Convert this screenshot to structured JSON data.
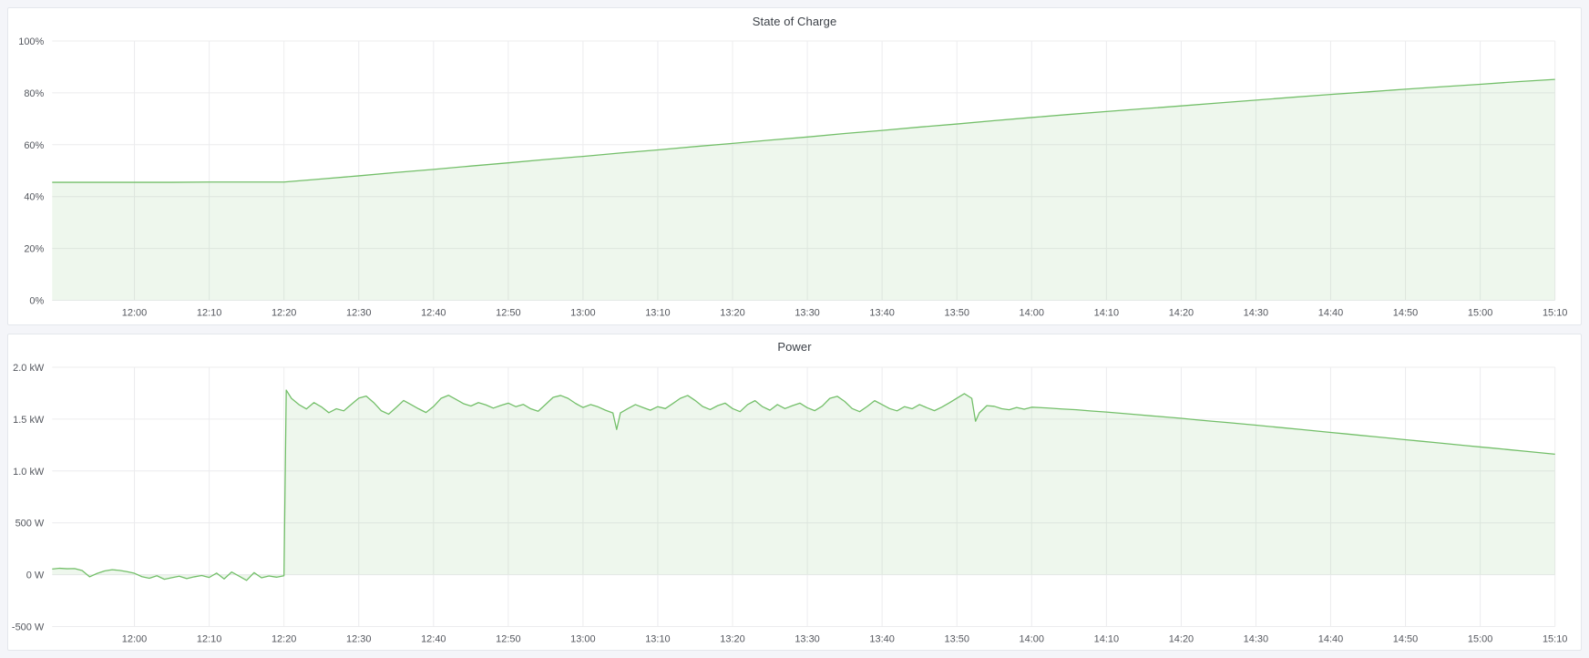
{
  "page": {
    "background_color": "#f4f5f9",
    "panel_background": "#ffffff",
    "panel_border_color": "#e4e7ec",
    "grid_color": "#ececee",
    "title_color": "#3c4148",
    "tick_label_color": "#54575e",
    "accent_green": "#73bf69"
  },
  "panels": [
    {
      "title": "State of Charge"
    },
    {
      "title": "Power"
    }
  ],
  "chart_data": [
    {
      "type": "area",
      "title": "State of Charge",
      "unit": "%",
      "legend": "none",
      "grid": true,
      "grid_color": "#ececee",
      "x_domain": [
        709,
        910
      ],
      "x_ticks": [
        {
          "t": 720,
          "label": "12:00"
        },
        {
          "t": 730,
          "label": "12:10"
        },
        {
          "t": 740,
          "label": "12:20"
        },
        {
          "t": 750,
          "label": "12:30"
        },
        {
          "t": 760,
          "label": "12:40"
        },
        {
          "t": 770,
          "label": "12:50"
        },
        {
          "t": 780,
          "label": "13:00"
        },
        {
          "t": 790,
          "label": "13:10"
        },
        {
          "t": 800,
          "label": "13:20"
        },
        {
          "t": 810,
          "label": "13:30"
        },
        {
          "t": 820,
          "label": "13:40"
        },
        {
          "t": 830,
          "label": "13:50"
        },
        {
          "t": 840,
          "label": "14:00"
        },
        {
          "t": 850,
          "label": "14:10"
        },
        {
          "t": 860,
          "label": "14:20"
        },
        {
          "t": 870,
          "label": "14:30"
        },
        {
          "t": 880,
          "label": "14:40"
        },
        {
          "t": 890,
          "label": "14:50"
        },
        {
          "t": 900,
          "label": "15:00"
        },
        {
          "t": 910,
          "label": "15:10"
        }
      ],
      "ylim": [
        0,
        100
      ],
      "y_ticks": [
        {
          "v": 0,
          "label": "0%"
        },
        {
          "v": 20,
          "label": "20%"
        },
        {
          "v": 40,
          "label": "40%"
        },
        {
          "v": 60,
          "label": "60%"
        },
        {
          "v": 80,
          "label": "80%"
        },
        {
          "v": 100,
          "label": "100%"
        }
      ],
      "series": [
        {
          "name": "State of Charge",
          "color": "#73bf69",
          "fill": "rgba(115,191,105,0.12)",
          "fill_to": 0,
          "points": [
            [
              709,
              45.5
            ],
            [
              715,
              45.5
            ],
            [
              720,
              45.5
            ],
            [
              725,
              45.5
            ],
            [
              730,
              45.6
            ],
            [
              735,
              45.6
            ],
            [
              740,
              45.6
            ],
            [
              745,
              46.8
            ],
            [
              750,
              48
            ],
            [
              755,
              49.3
            ],
            [
              760,
              50.5
            ],
            [
              765,
              51.8
            ],
            [
              770,
              53
            ],
            [
              775,
              54.3
            ],
            [
              780,
              55.5
            ],
            [
              785,
              56.8
            ],
            [
              790,
              58
            ],
            [
              795,
              59.3
            ],
            [
              800,
              60.5
            ],
            [
              805,
              61.8
            ],
            [
              810,
              63
            ],
            [
              815,
              64.3
            ],
            [
              820,
              65.5
            ],
            [
              825,
              66.8
            ],
            [
              830,
              68
            ],
            [
              835,
              69.3
            ],
            [
              840,
              70.5
            ],
            [
              845,
              71.7
            ],
            [
              850,
              72.8
            ],
            [
              855,
              73.9
            ],
            [
              860,
              75
            ],
            [
              865,
              76.1
            ],
            [
              870,
              77.2
            ],
            [
              875,
              78.3
            ],
            [
              880,
              79.4
            ],
            [
              885,
              80.4
            ],
            [
              890,
              81.4
            ],
            [
              895,
              82.4
            ],
            [
              900,
              83.3
            ],
            [
              905,
              84.3
            ],
            [
              910,
              85.2
            ]
          ]
        }
      ]
    },
    {
      "type": "area",
      "title": "Power",
      "unit": "W",
      "legend": "none",
      "grid": true,
      "grid_color": "#ececee",
      "x_domain": [
        709,
        910
      ],
      "x_ticks": [
        {
          "t": 720,
          "label": "12:00"
        },
        {
          "t": 730,
          "label": "12:10"
        },
        {
          "t": 740,
          "label": "12:20"
        },
        {
          "t": 750,
          "label": "12:30"
        },
        {
          "t": 760,
          "label": "12:40"
        },
        {
          "t": 770,
          "label": "12:50"
        },
        {
          "t": 780,
          "label": "13:00"
        },
        {
          "t": 790,
          "label": "13:10"
        },
        {
          "t": 800,
          "label": "13:20"
        },
        {
          "t": 810,
          "label": "13:30"
        },
        {
          "t": 820,
          "label": "13:40"
        },
        {
          "t": 830,
          "label": "13:50"
        },
        {
          "t": 840,
          "label": "14:00"
        },
        {
          "t": 850,
          "label": "14:10"
        },
        {
          "t": 860,
          "label": "14:20"
        },
        {
          "t": 870,
          "label": "14:30"
        },
        {
          "t": 880,
          "label": "14:40"
        },
        {
          "t": 890,
          "label": "14:50"
        },
        {
          "t": 900,
          "label": "15:00"
        },
        {
          "t": 910,
          "label": "15:10"
        }
      ],
      "ylim": [
        -500,
        2000
      ],
      "y_ticks": [
        {
          "v": -500,
          "label": "-500 W"
        },
        {
          "v": 0,
          "label": "0 W"
        },
        {
          "v": 500,
          "label": "500 W"
        },
        {
          "v": 1000,
          "label": "1.0 kW"
        },
        {
          "v": 1500,
          "label": "1.5 kW"
        },
        {
          "v": 2000,
          "label": "2.0 kW"
        }
      ],
      "series": [
        {
          "name": "Power",
          "color": "#73bf69",
          "fill": "rgba(115,191,105,0.12)",
          "fill_to": 0,
          "points": [
            [
              709,
              55
            ],
            [
              710,
              62
            ],
            [
              711,
              58
            ],
            [
              712,
              60
            ],
            [
              713,
              40
            ],
            [
              714,
              -20
            ],
            [
              715,
              12
            ],
            [
              716,
              36
            ],
            [
              717,
              48
            ],
            [
              718,
              42
            ],
            [
              719,
              30
            ],
            [
              720,
              14
            ],
            [
              721,
              -18
            ],
            [
              722,
              -34
            ],
            [
              723,
              -10
            ],
            [
              724,
              -44
            ],
            [
              725,
              -28
            ],
            [
              726,
              -14
            ],
            [
              727,
              -38
            ],
            [
              728,
              -20
            ],
            [
              729,
              -8
            ],
            [
              730,
              -26
            ],
            [
              731,
              16
            ],
            [
              732,
              -40
            ],
            [
              733,
              26
            ],
            [
              734,
              -14
            ],
            [
              735,
              -54
            ],
            [
              736,
              20
            ],
            [
              737,
              -30
            ],
            [
              738,
              -12
            ],
            [
              739,
              -24
            ],
            [
              740,
              -10
            ],
            [
              740.3,
              1780
            ],
            [
              741,
              1700
            ],
            [
              742,
              1640
            ],
            [
              743,
              1598
            ],
            [
              744,
              1660
            ],
            [
              745,
              1618
            ],
            [
              746,
              1562
            ],
            [
              747,
              1600
            ],
            [
              748,
              1580
            ],
            [
              749,
              1642
            ],
            [
              750,
              1702
            ],
            [
              751,
              1722
            ],
            [
              752,
              1660
            ],
            [
              753,
              1582
            ],
            [
              754,
              1548
            ],
            [
              755,
              1612
            ],
            [
              756,
              1680
            ],
            [
              757,
              1640
            ],
            [
              758,
              1600
            ],
            [
              759,
              1564
            ],
            [
              760,
              1622
            ],
            [
              761,
              1700
            ],
            [
              762,
              1730
            ],
            [
              763,
              1690
            ],
            [
              764,
              1650
            ],
            [
              765,
              1626
            ],
            [
              766,
              1660
            ],
            [
              767,
              1638
            ],
            [
              768,
              1606
            ],
            [
              769,
              1632
            ],
            [
              770,
              1654
            ],
            [
              771,
              1620
            ],
            [
              772,
              1642
            ],
            [
              773,
              1600
            ],
            [
              774,
              1576
            ],
            [
              775,
              1642
            ],
            [
              776,
              1710
            ],
            [
              777,
              1728
            ],
            [
              778,
              1700
            ],
            [
              779,
              1652
            ],
            [
              780,
              1612
            ],
            [
              781,
              1640
            ],
            [
              782,
              1618
            ],
            [
              783,
              1586
            ],
            [
              784,
              1560
            ],
            [
              784.5,
              1400
            ],
            [
              785,
              1560
            ],
            [
              786,
              1602
            ],
            [
              787,
              1640
            ],
            [
              788,
              1612
            ],
            [
              789,
              1586
            ],
            [
              790,
              1620
            ],
            [
              791,
              1602
            ],
            [
              792,
              1650
            ],
            [
              793,
              1700
            ],
            [
              794,
              1728
            ],
            [
              795,
              1680
            ],
            [
              796,
              1622
            ],
            [
              797,
              1592
            ],
            [
              798,
              1630
            ],
            [
              799,
              1654
            ],
            [
              800,
              1602
            ],
            [
              801,
              1572
            ],
            [
              802,
              1640
            ],
            [
              803,
              1678
            ],
            [
              804,
              1620
            ],
            [
              805,
              1586
            ],
            [
              806,
              1640
            ],
            [
              807,
              1602
            ],
            [
              808,
              1630
            ],
            [
              809,
              1654
            ],
            [
              810,
              1610
            ],
            [
              811,
              1582
            ],
            [
              812,
              1626
            ],
            [
              813,
              1700
            ],
            [
              814,
              1720
            ],
            [
              815,
              1670
            ],
            [
              816,
              1602
            ],
            [
              817,
              1572
            ],
            [
              818,
              1622
            ],
            [
              819,
              1678
            ],
            [
              820,
              1640
            ],
            [
              821,
              1602
            ],
            [
              822,
              1580
            ],
            [
              823,
              1620
            ],
            [
              824,
              1600
            ],
            [
              825,
              1640
            ],
            [
              826,
              1610
            ],
            [
              827,
              1582
            ],
            [
              828,
              1616
            ],
            [
              829,
              1658
            ],
            [
              830,
              1702
            ],
            [
              831,
              1746
            ],
            [
              832,
              1700
            ],
            [
              832.5,
              1480
            ],
            [
              833,
              1560
            ],
            [
              834,
              1630
            ],
            [
              835,
              1624
            ],
            [
              836,
              1600
            ],
            [
              837,
              1590
            ],
            [
              838,
              1612
            ],
            [
              839,
              1596
            ],
            [
              840,
              1615
            ],
            [
              842,
              1608
            ],
            [
              844,
              1598
            ],
            [
              846,
              1590
            ],
            [
              848,
              1578
            ],
            [
              850,
              1568
            ],
            [
              852,
              1556
            ],
            [
              854,
              1544
            ],
            [
              856,
              1532
            ],
            [
              858,
              1520
            ],
            [
              860,
              1508
            ],
            [
              862,
              1494
            ],
            [
              864,
              1481
            ],
            [
              866,
              1468
            ],
            [
              868,
              1455
            ],
            [
              870,
              1442
            ],
            [
              872,
              1428
            ],
            [
              874,
              1414
            ],
            [
              876,
              1400
            ],
            [
              878,
              1386
            ],
            [
              880,
              1372
            ],
            [
              882,
              1358
            ],
            [
              884,
              1344
            ],
            [
              886,
              1330
            ],
            [
              888,
              1316
            ],
            [
              890,
              1302
            ],
            [
              892,
              1288
            ],
            [
              894,
              1274
            ],
            [
              896,
              1260
            ],
            [
              898,
              1246
            ],
            [
              900,
              1232
            ],
            [
              902,
              1218
            ],
            [
              904,
              1204
            ],
            [
              906,
              1190
            ],
            [
              908,
              1176
            ],
            [
              910,
              1162
            ]
          ]
        }
      ]
    }
  ]
}
